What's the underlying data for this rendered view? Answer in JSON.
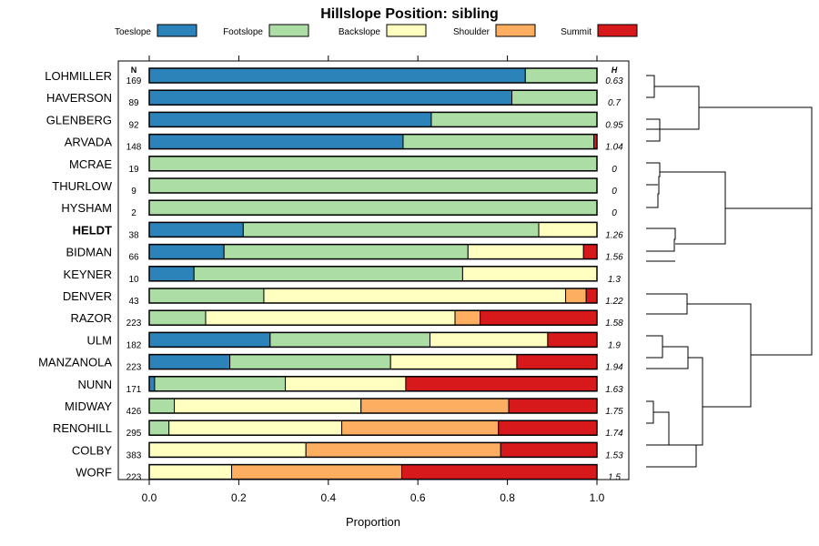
{
  "chart_data": {
    "type": "bar",
    "orientation": "horizontal",
    "stacked": true,
    "title": "Hillslope Position: sibling",
    "xlabel": "Proportion",
    "ylabel": "",
    "xlim": [
      0,
      1
    ],
    "xticks": [
      "0.0",
      "0.2",
      "0.4",
      "0.6",
      "0.8",
      "1.0"
    ],
    "xtick_values": [
      0,
      0.2,
      0.4,
      0.6,
      0.8,
      1.0
    ],
    "n_header": "N",
    "h_header": "H",
    "highlight": "HELDT",
    "legend": [
      {
        "name": "Toeslope",
        "color": "#2b83ba"
      },
      {
        "name": "Footslope",
        "color": "#abdda4"
      },
      {
        "name": "Backslope",
        "color": "#ffffbf"
      },
      {
        "name": "Shoulder",
        "color": "#fdae61"
      },
      {
        "name": "Summit",
        "color": "#d7191c"
      }
    ],
    "rows": [
      {
        "name": "LOHMILLER",
        "n": "169",
        "h": "0.63",
        "values": [
          0.84,
          0.16,
          0,
          0,
          0
        ]
      },
      {
        "name": "HAVERSON",
        "n": "89",
        "h": "0.7",
        "values": [
          0.81,
          0.19,
          0,
          0,
          0
        ]
      },
      {
        "name": "GLENBERG",
        "n": "92",
        "h": "0.95",
        "values": [
          0.63,
          0.37,
          0,
          0,
          0
        ]
      },
      {
        "name": "ARVADA",
        "n": "148",
        "h": "1.04",
        "values": [
          0.567,
          0.426,
          0,
          0,
          0.007
        ]
      },
      {
        "name": "MCRAE",
        "n": "19",
        "h": "0",
        "values": [
          0,
          1,
          0,
          0,
          0
        ]
      },
      {
        "name": "THURLOW",
        "n": "9",
        "h": "0",
        "values": [
          0,
          1,
          0,
          0,
          0
        ]
      },
      {
        "name": "HYSHAM",
        "n": "2",
        "h": "0",
        "values": [
          0,
          1,
          0,
          0,
          0
        ]
      },
      {
        "name": "HELDT",
        "n": "38",
        "h": "1.26",
        "values": [
          0.21,
          0.66,
          0.13,
          0,
          0
        ]
      },
      {
        "name": "BIDMAN",
        "n": "66",
        "h": "1.56",
        "values": [
          0.167,
          0.545,
          0.258,
          0,
          0.03
        ]
      },
      {
        "name": "KEYNER",
        "n": "10",
        "h": "1.3",
        "values": [
          0.1,
          0.6,
          0.3,
          0,
          0
        ]
      },
      {
        "name": "DENVER",
        "n": "43",
        "h": "1.22",
        "values": [
          0,
          0.256,
          0.674,
          0.046,
          0.024
        ]
      },
      {
        "name": "RAZOR",
        "n": "223",
        "h": "1.58",
        "values": [
          0,
          0.126,
          0.557,
          0.056,
          0.261
        ]
      },
      {
        "name": "ULM",
        "n": "182",
        "h": "1.9",
        "values": [
          0.27,
          0.357,
          0.263,
          0,
          0.11
        ]
      },
      {
        "name": "MANZANOLA",
        "n": "223",
        "h": "1.94",
        "values": [
          0.18,
          0.359,
          0.282,
          0,
          0.179
        ]
      },
      {
        "name": "NUNN",
        "n": "171",
        "h": "1.63",
        "values": [
          0.012,
          0.292,
          0.269,
          0,
          0.427
        ]
      },
      {
        "name": "MIDWAY",
        "n": "426",
        "h": "1.75",
        "values": [
          0,
          0.056,
          0.417,
          0.33,
          0.197
        ]
      },
      {
        "name": "RENOHILL",
        "n": "295",
        "h": "1.74",
        "values": [
          0,
          0.044,
          0.386,
          0.35,
          0.22
        ]
      },
      {
        "name": "COLBY",
        "n": "383",
        "h": "1.53",
        "values": [
          0,
          0,
          0.35,
          0.435,
          0.215
        ]
      },
      {
        "name": "WORF",
        "n": "223",
        "h": "1.5",
        "values": [
          0,
          0,
          0.184,
          0.38,
          0.436
        ]
      }
    ]
  }
}
